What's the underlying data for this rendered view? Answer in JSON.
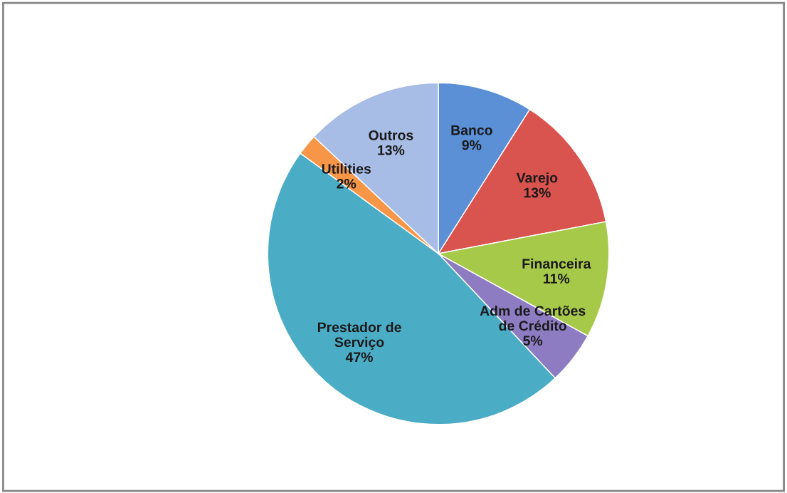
{
  "chart_data": {
    "type": "pie",
    "categories": [
      "Banco",
      "Varejo",
      "Financeira",
      "Adm de Cartões de Crédito",
      "Prestador de Serviço",
      "Utilities",
      "Outros"
    ],
    "values": [
      9,
      13,
      11,
      5,
      47,
      2,
      13
    ],
    "colors": [
      "#5b8fd6",
      "#d9534f",
      "#a6c94a",
      "#8e7cc3",
      "#4bacc6",
      "#f79646",
      "#a7bde6"
    ],
    "value_labels": [
      "9%",
      "13%",
      "11%",
      "5%",
      "47%",
      "2%",
      "13%"
    ],
    "legend": false
  }
}
